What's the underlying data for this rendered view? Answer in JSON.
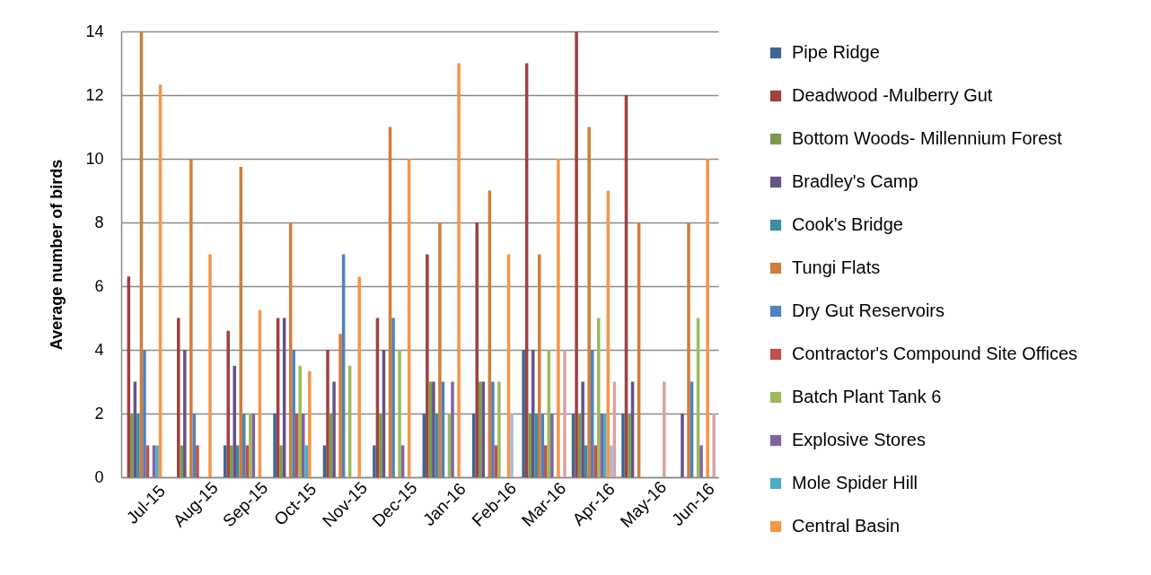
{
  "chart_data": {
    "type": "bar",
    "categories": [
      "Jul-15",
      "Aug-15",
      "Sep-15",
      "Oct-15",
      "Nov-15",
      "Dec-15",
      "Jan-16",
      "Feb-16",
      "Mar-16",
      "Apr-16",
      "May-16",
      "Jun-16"
    ],
    "series": [
      {
        "name": "Pipe Ridge",
        "color": "#3c6696",
        "values": [
          null,
          null,
          1,
          2,
          1,
          1,
          2,
          2,
          4,
          2,
          2,
          null
        ]
      },
      {
        "name": "Deadwood -Mulberry Gut",
        "color": "#9d4240",
        "values": [
          6.3,
          5,
          4.6,
          5,
          4,
          5,
          7,
          8,
          13,
          14,
          12,
          null
        ]
      },
      {
        "name": "Bottom Woods- Millennium Forest",
        "color": "#7e9a4a",
        "values": [
          2,
          1,
          1,
          1,
          2,
          2,
          3,
          3,
          2,
          2,
          2,
          null
        ]
      },
      {
        "name": "Bradley's  Camp",
        "color": "#67528a",
        "values": [
          3,
          4,
          3.5,
          5,
          3,
          4,
          3,
          3,
          4,
          3,
          3,
          2
        ]
      },
      {
        "name": "Cook's Bridge",
        "color": "#3b8ea5",
        "values": [
          2,
          null,
          1,
          null,
          null,
          null,
          2,
          null,
          2,
          1,
          null,
          null
        ]
      },
      {
        "name": "Tungi Flats",
        "color": "#d17d3a",
        "values": [
          14,
          10,
          9.75,
          8,
          4.5,
          11,
          8,
          9,
          7,
          11,
          8,
          8
        ]
      },
      {
        "name": "Dry Gut Reservoirs",
        "color": "#4f81bd",
        "values": [
          4,
          2,
          2,
          4,
          7,
          5,
          3,
          3,
          2,
          4,
          null,
          3
        ]
      },
      {
        "name": "Contractor's Compound Site Offices",
        "color": "#c0504d",
        "values": [
          1,
          1,
          1,
          2,
          null,
          null,
          null,
          1,
          1,
          1,
          null,
          null
        ]
      },
      {
        "name": "Batch Plant Tank 6",
        "color": "#9bbb59",
        "values": [
          null,
          null,
          2,
          3.5,
          3.5,
          4,
          2,
          3,
          4,
          5,
          null,
          5
        ]
      },
      {
        "name": "Explosive Stores",
        "color": "#8064a2",
        "values": [
          1,
          null,
          2,
          2,
          null,
          1,
          3,
          null,
          2,
          2,
          null,
          1
        ]
      },
      {
        "name": "Mole Spider Hill",
        "color": "#4bacc6",
        "values": [
          1,
          null,
          null,
          1,
          null,
          null,
          null,
          null,
          null,
          2,
          null,
          null
        ]
      },
      {
        "name": "Central Basin",
        "color": "#f79646",
        "values": [
          12.33,
          7,
          5.25,
          3.33,
          6.3,
          10,
          13,
          7,
          10,
          9,
          null,
          10
        ]
      },
      {
        "color": "#a7b9d9",
        "values": [
          null,
          null,
          null,
          null,
          null,
          null,
          null,
          2,
          null,
          1,
          null,
          null
        ]
      },
      {
        "color": "#d9a3a2",
        "values": [
          null,
          null,
          null,
          null,
          null,
          null,
          null,
          null,
          4,
          3,
          3,
          2
        ]
      }
    ],
    "ylabel": "Average number of birds",
    "ylim": [
      0,
      14
    ],
    "yticks": [
      0,
      2,
      4,
      6,
      8,
      10,
      12,
      14
    ],
    "grid": "y",
    "legend": "right"
  }
}
